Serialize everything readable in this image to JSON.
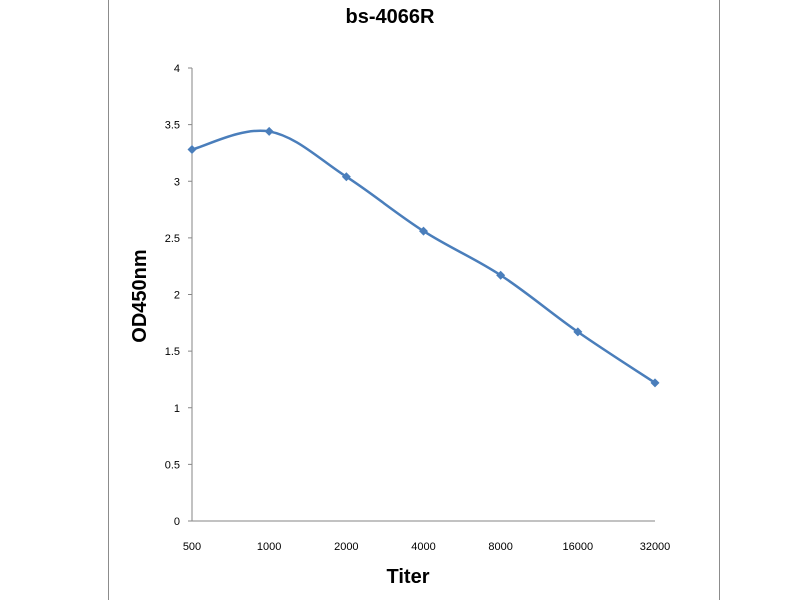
{
  "chart_data": {
    "type": "line",
    "title": "bs-4066R",
    "xlabel": "Titer",
    "ylabel": "OD450nm",
    "categories": [
      "500",
      "1000",
      "2000",
      "4000",
      "8000",
      "16000",
      "32000"
    ],
    "series": [
      {
        "values": [
          3.28,
          3.44,
          3.04,
          2.56,
          2.17,
          1.67,
          1.22
        ]
      }
    ],
    "y_ticks": [
      "0",
      "0.5",
      "1",
      "1.5",
      "2",
      "2.5",
      "3",
      "3.5",
      "4"
    ],
    "ylim": [
      0,
      4
    ],
    "grid": false,
    "legend": "none",
    "series_color": "#4a7ebb",
    "marker": "diamond",
    "smooth": true
  }
}
